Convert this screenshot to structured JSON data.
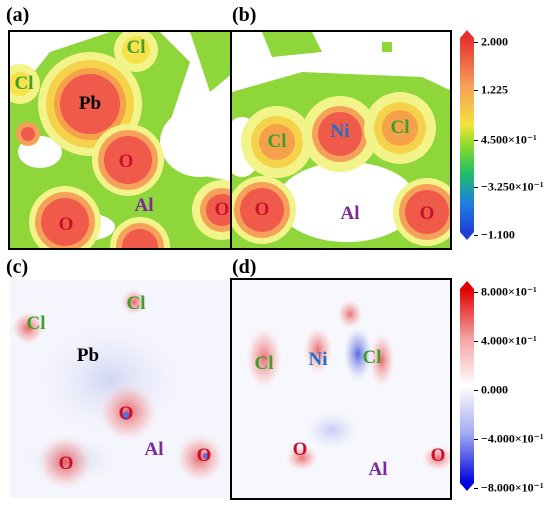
{
  "figure": {
    "panels": [
      {
        "id": "a",
        "label": "(a)",
        "atoms": [
          {
            "text": "Cl",
            "color": "#3f9e2a"
          },
          {
            "text": "Cl",
            "color": "#3f9e2a"
          },
          {
            "text": "Pb",
            "color": "#000000"
          },
          {
            "text": "O",
            "color": "#c8102e"
          },
          {
            "text": "Al",
            "color": "#7b2a9b"
          },
          {
            "text": "O",
            "color": "#c8102e"
          },
          {
            "text": "O",
            "color": "#c8102e"
          }
        ]
      },
      {
        "id": "b",
        "label": "(b)",
        "atoms": [
          {
            "text": "Cl",
            "color": "#3f9e2a"
          },
          {
            "text": "Ni",
            "color": "#1e6fc8"
          },
          {
            "text": "Cl",
            "color": "#3f9e2a"
          },
          {
            "text": "O",
            "color": "#c8102e"
          },
          {
            "text": "Al",
            "color": "#7b2a9b"
          },
          {
            "text": "O",
            "color": "#c8102e"
          }
        ]
      },
      {
        "id": "c",
        "label": "(c)",
        "atoms": [
          {
            "text": "Cl",
            "color": "#3f9e2a"
          },
          {
            "text": "Cl",
            "color": "#3f9e2a"
          },
          {
            "text": "Pb",
            "color": "#000000"
          },
          {
            "text": "O",
            "color": "#c8102e"
          },
          {
            "text": "Al",
            "color": "#7b2a9b"
          },
          {
            "text": "O",
            "color": "#c8102e"
          },
          {
            "text": "O",
            "color": "#c8102e"
          }
        ]
      },
      {
        "id": "d",
        "label": "(d)",
        "atoms": [
          {
            "text": "Cl",
            "color": "#3f9e2a"
          },
          {
            "text": "Ni",
            "color": "#1e6fc8"
          },
          {
            "text": "Cl",
            "color": "#3f9e2a"
          },
          {
            "text": "O",
            "color": "#c8102e"
          },
          {
            "text": "Al",
            "color": "#7b2a9b"
          },
          {
            "text": "O",
            "color": "#c8102e"
          }
        ]
      }
    ],
    "colorbar_top": {
      "ticks": [
        "2.000",
        "1.225",
        "4.500×10⁻¹",
        "−3.250×10⁻¹",
        "−1.100"
      ],
      "colors": [
        "#e53030",
        "#f6a15a",
        "#f2e43a",
        "#8fdc2a",
        "#1fbf6a",
        "#1f7fe0",
        "#1f3fd8"
      ]
    },
    "colorbar_bottom": {
      "ticks": [
        "8.000×10⁻¹",
        "4.000×10⁻¹",
        "0.000",
        "−4.000×10⁻¹",
        "−8.000×10⁻¹"
      ],
      "colors": [
        "#e00000",
        "#f4a0a0",
        "#ffffff",
        "#a0a8f0",
        "#0000e0"
      ]
    }
  }
}
